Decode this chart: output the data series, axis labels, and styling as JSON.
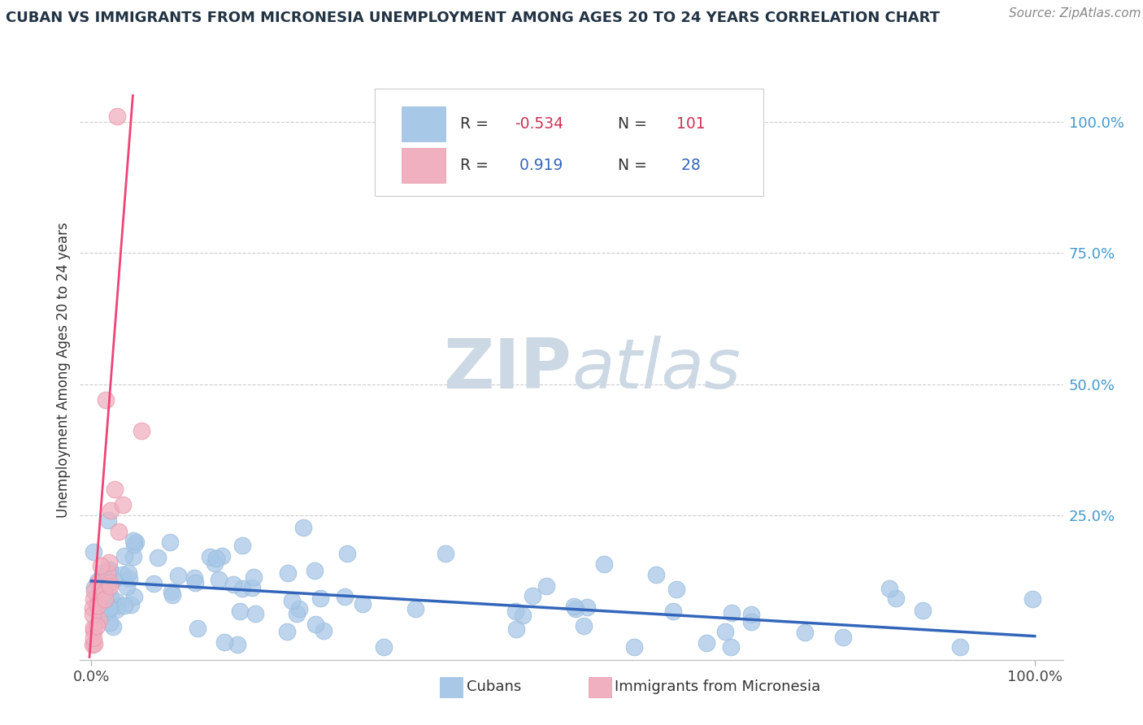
{
  "title": "CUBAN VS IMMIGRANTS FROM MICRONESIA UNEMPLOYMENT AMONG AGES 20 TO 24 YEARS CORRELATION CHART",
  "source_text": "Source: ZipAtlas.com",
  "ylabel": "Unemployment Among Ages 20 to 24 years",
  "ytick_labels": [
    "100.0%",
    "75.0%",
    "50.0%",
    "25.0%"
  ],
  "ytick_positions": [
    1.0,
    0.75,
    0.5,
    0.25
  ],
  "grid_color": "#c8c8c8",
  "background_color": "#ffffff",
  "legend_R_blue": "-0.534",
  "legend_N_blue": "101",
  "legend_R_pink": "0.919",
  "legend_N_pink": "28",
  "blue_color": "#a8c8e8",
  "pink_color": "#f0b0c0",
  "line_blue_color": "#3366bb",
  "line_pink_color": "#ee4477",
  "text_color": "#223344",
  "source_color": "#888888",
  "right_axis_color": "#4499cc",
  "watermark_color": "#ccd8e4",
  "legend_value_color_blue": "#cc3355",
  "legend_value_color_pink": "#3366bb"
}
